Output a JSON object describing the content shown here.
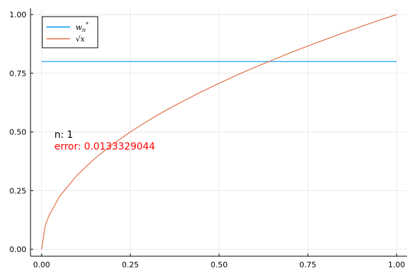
{
  "chart_data": {
    "type": "line",
    "xlim": [
      0,
      1
    ],
    "ylim": [
      0,
      1
    ],
    "xticks": [
      "0.00",
      "0.25",
      "0.50",
      "0.75",
      "1.00"
    ],
    "yticks": [
      "0.00",
      "0.25",
      "0.50",
      "0.75",
      "1.00"
    ],
    "grid": true,
    "legend_position": "top-left",
    "series": [
      {
        "name": "w_n^*",
        "color": "#009AFA",
        "x": [
          0,
          1
        ],
        "y": [
          0.8,
          0.8
        ]
      },
      {
        "name": "√x",
        "color": "#E26F46",
        "x": [
          0,
          0.01,
          0.02,
          0.05,
          0.1,
          0.15,
          0.2,
          0.25,
          0.3,
          0.35,
          0.4,
          0.45,
          0.5,
          0.55,
          0.6,
          0.65,
          0.7,
          0.75,
          0.8,
          0.85,
          0.9,
          0.95,
          1
        ],
        "y": [
          0,
          0.1,
          0.141,
          0.224,
          0.316,
          0.387,
          0.447,
          0.5,
          0.548,
          0.592,
          0.632,
          0.671,
          0.707,
          0.742,
          0.775,
          0.806,
          0.837,
          0.866,
          0.894,
          0.922,
          0.949,
          0.975,
          1
        ]
      }
    ],
    "annotations": [
      {
        "text": "n: 1",
        "x": 0.04,
        "y": 0.49,
        "color": "#000000"
      },
      {
        "text": "error: 0.0133329044",
        "x": 0.04,
        "y": 0.44,
        "color": "#FF0000"
      }
    ]
  }
}
